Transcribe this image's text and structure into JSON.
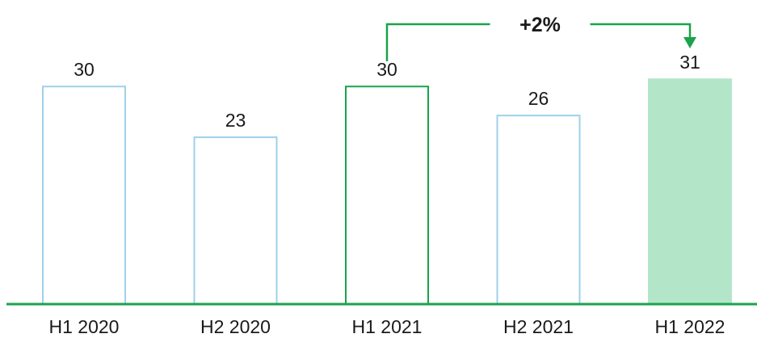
{
  "chart_data": {
    "type": "bar",
    "categories": [
      "H1 2020",
      "H2 2020",
      "H1 2021",
      "H2 2021",
      "H1 2022"
    ],
    "values": [
      30,
      23,
      30,
      26,
      31
    ],
    "title": "",
    "xlabel": "",
    "ylabel": "",
    "ylim": [
      0,
      33
    ],
    "grid": false,
    "bar_styles": [
      "outline-blue",
      "outline-blue",
      "outline-green",
      "outline-blue",
      "filled-green"
    ],
    "colors": {
      "outline_blue": "#9fd0ea",
      "outline_green": "#1aa34a",
      "filled_green": "#b3e6c9",
      "axis": "#1aa34a",
      "annotation": "#1aa34a"
    },
    "annotation": {
      "text": "+2%",
      "from": "H1 2021",
      "to": "H1 2022"
    }
  }
}
